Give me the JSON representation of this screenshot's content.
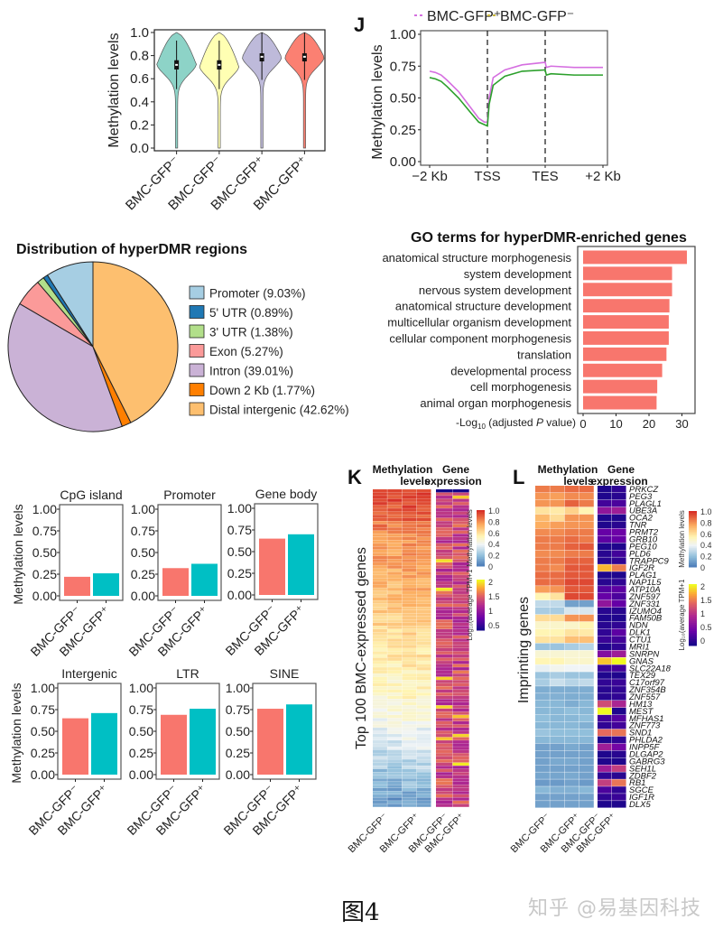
{
  "figure_caption": "图4",
  "watermark": "知乎 @易基因科技",
  "colors": {
    "violin": [
      "#8dd3c7",
      "#ffffb3",
      "#bebada",
      "#fb8072"
    ],
    "gfp_minus": "#f8766d",
    "gfp_plus": "#00bfc4",
    "line_plus": "#d56fe0",
    "line_minus": "#2ca02c",
    "go_bar": "#f8766d"
  },
  "chart_data": [
    {
      "id": "violin",
      "type": "violin",
      "title": "",
      "ylabel": "Methylation levels",
      "ylim": [
        0,
        1
      ],
      "yticks": [
        "0.0",
        "0.2",
        "0.4",
        "0.6",
        "0.8",
        "1.0"
      ],
      "categories": [
        "BMC-GFP⁻",
        "BMC-GFP⁻",
        "BMC-GFP⁺",
        "BMC-GFP⁺"
      ],
      "medians": [
        0.72,
        0.72,
        0.79,
        0.79
      ],
      "q1": [
        0.68,
        0.68,
        0.75,
        0.75
      ],
      "q3": [
        0.76,
        0.76,
        0.82,
        0.82
      ],
      "whisker_low": [
        0.51,
        0.51,
        0.59,
        0.59
      ],
      "whisker_high": [
        0.93,
        0.93,
        1.0,
        1.0
      ],
      "mode": [
        0.74,
        0.72,
        0.8,
        0.8
      ]
    },
    {
      "id": "J",
      "panel_label": "J",
      "type": "line",
      "ylabel": "Methylation levels",
      "ylim": [
        0,
        1
      ],
      "yticks": [
        "0.00",
        "0.25",
        "0.50",
        "0.75",
        "1.00"
      ],
      "xticks": [
        "−2 Kb",
        "TSS",
        "TES",
        "+2 Kb"
      ],
      "x": [
        0,
        0.1,
        0.2,
        0.3,
        0.5,
        0.7,
        0.85,
        0.95,
        1.0,
        1.03,
        1.1,
        1.3,
        1.6,
        2.0,
        2.02,
        2.1,
        2.5,
        3.0
      ],
      "series": [
        {
          "name": "BMC-GFP⁺",
          "values": [
            0.71,
            0.7,
            0.68,
            0.64,
            0.55,
            0.43,
            0.34,
            0.31,
            0.31,
            0.5,
            0.66,
            0.72,
            0.76,
            0.78,
            0.74,
            0.75,
            0.74,
            0.74
          ]
        },
        {
          "name": "BMC-GFP⁻",
          "values": [
            0.66,
            0.65,
            0.63,
            0.59,
            0.5,
            0.39,
            0.31,
            0.29,
            0.28,
            0.45,
            0.6,
            0.67,
            0.71,
            0.72,
            0.68,
            0.69,
            0.68,
            0.68
          ]
        }
      ],
      "vlines": [
        "TSS",
        "TES"
      ]
    },
    {
      "id": "pie",
      "type": "pie",
      "title": "Distribution of hyperDMR regions",
      "slices": [
        {
          "label": "Promoter (9.03%)",
          "value": 9.03,
          "color": "#a6cee3"
        },
        {
          "label": "5' UTR (0.89%)",
          "value": 0.89,
          "color": "#1f78b4"
        },
        {
          "label": "3' UTR (1.38%)",
          "value": 1.38,
          "color": "#b2df8a"
        },
        {
          "label": "Exon (5.27%)",
          "value": 5.27,
          "color": "#fb9a99"
        },
        {
          "label": "Intron (39.01%)",
          "value": 39.01,
          "color": "#cab2d6"
        },
        {
          "label": "Down 2 Kb (1.77%)",
          "value": 1.77,
          "color": "#ff7f00"
        },
        {
          "label": "Distal intergenic (42.62%)",
          "value": 42.62,
          "color": "#fdbf6f"
        }
      ],
      "legend": "right"
    },
    {
      "id": "go",
      "type": "bar",
      "orientation": "horizontal",
      "title": "GO terms for hyperDMR-enriched genes",
      "xlabel_pre": "-Log",
      "xlabel_sub": "10",
      "xlabel_post": " (adjusted ",
      "xlabel_italic": "P",
      "xlabel_end": " value)",
      "xlim": [
        0,
        33
      ],
      "xticks": [
        0,
        10,
        20,
        30
      ],
      "categories": [
        "anatomical structure morphogenesis",
        "system development",
        "nervous system development",
        "anatomical structure development",
        "multicellular organism development",
        "cellular component morphogenesis",
        "translation",
        "developmental process",
        "cell morphogenesis",
        "animal organ morphogenesis"
      ],
      "values": [
        31.5,
        27.0,
        27.0,
        26.2,
        26.0,
        26.0,
        25.3,
        24.0,
        22.5,
        22.3
      ]
    },
    {
      "id": "region_bars",
      "type": "bar",
      "ylabel": "Methylation levels",
      "ylim": [
        0,
        1
      ],
      "yticks": [
        "0.00",
        "0.25",
        "0.50",
        "0.75",
        "1.00"
      ],
      "categories": [
        "BMC-GFP⁻",
        "BMC-GFP⁺"
      ],
      "panels": [
        {
          "title": "CpG island",
          "values": [
            0.22,
            0.26
          ]
        },
        {
          "title": "Promoter",
          "values": [
            0.32,
            0.37
          ]
        },
        {
          "title": "Gene body",
          "values": [
            0.65,
            0.7
          ]
        },
        {
          "title": "Intergenic",
          "values": [
            0.65,
            0.71
          ]
        },
        {
          "title": "LTR",
          "values": [
            0.69,
            0.76
          ]
        },
        {
          "title": "SINE",
          "values": [
            0.76,
            0.81
          ]
        }
      ]
    },
    {
      "id": "K",
      "panel_label": "K",
      "type": "heatmap",
      "header_methylation": [
        "Methylation",
        "levels"
      ],
      "header_expression": [
        "Gene",
        "expression"
      ],
      "ylabel": "Top 100 BMC-expressed genes",
      "rows": 100,
      "columns": [
        "BMC-GFP⁻",
        "BMC-GFP⁺",
        "BMC-GFP⁻",
        "BMC-GFP⁺"
      ],
      "methylation_profile": [
        0.95,
        0.92,
        0.88,
        0.85,
        0.82,
        0.8,
        0.78,
        0.76,
        0.74,
        0.72,
        0.7,
        0.68,
        0.66,
        0.64,
        0.62,
        0.6,
        0.58,
        0.56,
        0.54,
        0.52,
        0.5,
        0.48,
        0.45,
        0.42,
        0.38,
        0.34,
        0.3,
        0.26,
        0.22,
        0.18,
        0.14,
        0.1
      ],
      "legend_methylation": {
        "title": "Methylation levels",
        "ticks": [
          "1.0",
          "0.8",
          "0.6",
          "0.4",
          "0.2",
          "0"
        ]
      },
      "legend_expression": {
        "title": "Log₁₀(average TPM+1",
        "ticks": [
          "2",
          "1.5",
          "1",
          "0.5"
        ]
      }
    },
    {
      "id": "L",
      "panel_label": "L",
      "type": "heatmap",
      "header_methylation": [
        "Methylation",
        "levels"
      ],
      "header_expression": [
        "Gene",
        "expression"
      ],
      "ylabel": "Imprinting genes",
      "columns": [
        "BMC-GFP⁻",
        "BMC-GFP⁺",
        "BMC-GFP⁻",
        "BMC-GFP⁺"
      ],
      "genes": [
        "PRKCZ",
        "PEG3",
        "PLAGL1",
        "UBE3A",
        "OCA2",
        "TNR",
        "PRMT2",
        "GRB10",
        "PEG10",
        "PLD6",
        "TRAPPC9",
        "IGF2R",
        "PLAG1",
        "NAP1L5",
        "ATP10A",
        "ZNF597",
        "ZNF331",
        "IZUMO4",
        "FAM50B",
        "NDN",
        "DLK1",
        "CTU1",
        "MRI1",
        "SNRPN",
        "GNAS",
        "SLC22A18",
        "TEX29",
        "C17orf97",
        "ZNF354B",
        "ZNF557",
        "HM13",
        "MEST",
        "MFHAS1",
        "ZNF773",
        "SND1",
        "PHLDA2",
        "INPP5F",
        "DLGAP2",
        "GABRG3",
        "SEH1L",
        "ZDBF2",
        "RB1",
        "SGCE",
        "IGF1R",
        "DLX5"
      ],
      "methylation": [
        [
          0.85,
          0.85,
          0.88,
          0.88
        ],
        [
          0.8,
          0.78,
          0.82,
          0.82
        ],
        [
          0.8,
          0.8,
          0.9,
          0.85
        ],
        [
          0.6,
          0.58,
          0.65,
          0.55
        ],
        [
          0.72,
          0.62,
          0.8,
          0.8
        ],
        [
          0.75,
          0.78,
          0.8,
          0.8
        ],
        [
          0.82,
          0.82,
          0.85,
          0.85
        ],
        [
          0.85,
          0.85,
          0.88,
          0.85
        ],
        [
          0.85,
          0.85,
          0.9,
          0.92
        ],
        [
          0.82,
          0.82,
          0.85,
          0.85
        ],
        [
          0.85,
          0.85,
          0.9,
          0.9
        ],
        [
          0.85,
          0.82,
          0.92,
          0.92
        ],
        [
          0.88,
          0.88,
          0.92,
          0.92
        ],
        [
          0.88,
          0.88,
          0.95,
          0.95
        ],
        [
          0.78,
          0.8,
          0.92,
          0.92
        ],
        [
          0.55,
          0.6,
          0.95,
          0.95
        ],
        [
          0.3,
          0.3,
          0.12,
          0.12
        ],
        [
          0.25,
          0.25,
          0.35,
          0.35
        ],
        [
          0.62,
          0.62,
          0.8,
          0.8
        ],
        [
          0.5,
          0.5,
          0.5,
          0.55
        ],
        [
          0.55,
          0.55,
          0.6,
          0.58
        ],
        [
          0.6,
          0.6,
          0.7,
          0.7
        ],
        [
          0.22,
          0.22,
          0.25,
          0.28
        ],
        [
          0.48,
          0.48,
          0.48,
          0.48
        ],
        [
          0.55,
          0.55,
          0.5,
          0.5
        ],
        [
          0.38,
          0.42,
          0.4,
          0.4
        ],
        [
          0.22,
          0.25,
          0.22,
          0.22
        ],
        [
          0.25,
          0.32,
          0.28,
          0.3
        ],
        [
          0.15,
          0.15,
          0.15,
          0.15
        ],
        [
          0.16,
          0.16,
          0.15,
          0.15
        ],
        [
          0.18,
          0.18,
          0.15,
          0.18
        ],
        [
          0.18,
          0.18,
          0.2,
          0.18
        ],
        [
          0.2,
          0.18,
          0.18,
          0.2
        ],
        [
          0.18,
          0.18,
          0.18,
          0.16
        ],
        [
          0.22,
          0.2,
          0.2,
          0.2
        ],
        [
          0.18,
          0.18,
          0.18,
          0.18
        ],
        [
          0.12,
          0.12,
          0.14,
          0.12
        ],
        [
          0.12,
          0.12,
          0.12,
          0.12
        ],
        [
          0.12,
          0.14,
          0.14,
          0.12
        ],
        [
          0.12,
          0.12,
          0.12,
          0.12
        ],
        [
          0.13,
          0.13,
          0.14,
          0.12
        ],
        [
          0.1,
          0.1,
          0.12,
          0.1
        ],
        [
          0.18,
          0.16,
          0.16,
          0.18
        ],
        [
          0.12,
          0.12,
          0.12,
          0.12
        ],
        [
          0.12,
          0.12,
          0.12,
          0.12
        ]
      ],
      "expression": [
        [
          0.1,
          0.2
        ],
        [
          0.1,
          0.15
        ],
        [
          0.3,
          0.35
        ],
        [
          0.8,
          0.9
        ],
        [
          0.1,
          0.1
        ],
        [
          0.1,
          0.15
        ],
        [
          0.5,
          0.55
        ],
        [
          0.45,
          0.5
        ],
        [
          0.1,
          0.1
        ],
        [
          0.15,
          0.3
        ],
        [
          0.15,
          0.2
        ],
        [
          1.85,
          1.6
        ],
        [
          0.1,
          0.1
        ],
        [
          0.15,
          0.2
        ],
        [
          0.4,
          0.45
        ],
        [
          0.5,
          0.35
        ],
        [
          0.8,
          0.5
        ],
        [
          0.15,
          0.15
        ],
        [
          0.1,
          0.1
        ],
        [
          0.15,
          0.2
        ],
        [
          0.2,
          0.45
        ],
        [
          0.25,
          0.3
        ],
        [
          0.1,
          0.2
        ],
        [
          0.7,
          0.9
        ],
        [
          1.9,
          2.1
        ],
        [
          0.25,
          0.3
        ],
        [
          0.1,
          0.1
        ],
        [
          0.2,
          0.25
        ],
        [
          0.15,
          0.2
        ],
        [
          0.15,
          0.2
        ],
        [
          1.3,
          1.0
        ],
        [
          2.1,
          0.1
        ],
        [
          0.3,
          0.4
        ],
        [
          0.2,
          0.3
        ],
        [
          1.5,
          1.55
        ],
        [
          0.1,
          0.2
        ],
        [
          0.9,
          0.6
        ],
        [
          0.1,
          0.15
        ],
        [
          0.1,
          0.1
        ],
        [
          0.9,
          1.2
        ],
        [
          0.2,
          0.15
        ],
        [
          1.2,
          1.55
        ],
        [
          0.35,
          0.2
        ],
        [
          0.2,
          0.25
        ],
        [
          0.1,
          0.1
        ]
      ],
      "legend_methylation": {
        "title": "Methylation levels",
        "ticks": [
          "1.0",
          "0.8",
          "0.6",
          "0.4",
          "0.2",
          "0"
        ]
      },
      "legend_expression": {
        "title": "Log₁₀(average TPM+1",
        "ticks": [
          "2",
          "1.5",
          "1",
          "0.5",
          "0"
        ]
      }
    }
  ]
}
